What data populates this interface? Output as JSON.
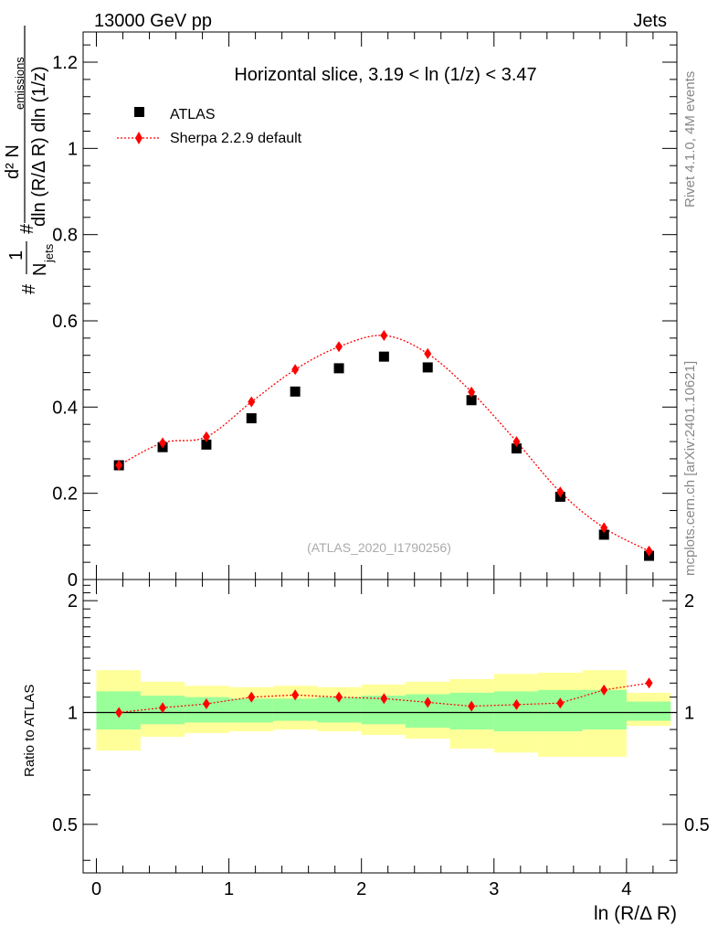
{
  "header": {
    "energy_label": "13000 GeV pp",
    "process_label": "Jets"
  },
  "side_labels": {
    "rivet": "Rivet 4.1.0,  4M events",
    "mcplots": "mcplots.cern.ch [arXiv:2401.10621]"
  },
  "chart_data": [
    {
      "type": "scatter",
      "title": "Horizontal slice, 3.19 < ln (1/z) < 3.47",
      "watermark": "(ATLAS_2020_I1790256)",
      "xlabel": "ln (R/Δ R)",
      "ylabel_parts": {
        "prefix": "#",
        "frac1_num": "1",
        "frac1_den": "N",
        "frac1_den_sub": "jets",
        "hash2": "#",
        "frac2_num": "d² N",
        "frac2_num_sub": "emissions",
        "frac2_den": "dln (R/Δ R) dln (1/z)"
      },
      "xlim": [
        -0.1,
        4.38
      ],
      "ylim": [
        0,
        1.27
      ],
      "yticks": [
        0,
        0.2,
        0.4,
        0.6,
        0.8,
        1,
        1.2
      ],
      "ytick_labels": [
        "0",
        "0.2",
        "0.4",
        "0.6",
        "0.8",
        "1",
        "1.2"
      ],
      "x": [
        0.17,
        0.5,
        0.83,
        1.17,
        1.5,
        1.83,
        2.17,
        2.5,
        2.83,
        3.17,
        3.5,
        3.83,
        4.17
      ],
      "series": [
        {
          "name": "ATLAS",
          "marker": "square",
          "color": "#000000",
          "values": [
            0.265,
            0.307,
            0.313,
            0.374,
            0.436,
            0.49,
            0.517,
            0.492,
            0.416,
            0.304,
            0.192,
            0.104,
            0.055
          ]
        },
        {
          "name": "Sherpa 2.2.9 default",
          "marker": "diamond",
          "line": "dotted",
          "color": "#ff0000",
          "values": [
            0.265,
            0.317,
            0.331,
            0.412,
            0.487,
            0.54,
            0.566,
            0.524,
            0.435,
            0.32,
            0.203,
            0.12,
            0.066
          ]
        }
      ]
    },
    {
      "type": "band-ratio",
      "ylabel": "Ratio to ATLAS",
      "ylim": [
        0.37,
        2.28
      ],
      "yticks": [
        0.5,
        1,
        2
      ],
      "ytick_labels": [
        "0.5",
        "1",
        "2"
      ],
      "xticks": [
        0,
        1,
        2,
        3,
        4
      ],
      "xtick_labels": [
        "0",
        "1",
        "2",
        "3",
        "4"
      ],
      "bin_edges": [
        0,
        0.333,
        0.667,
        1,
        1.333,
        1.667,
        2,
        2.333,
        2.667,
        3,
        3.333,
        3.667,
        4,
        4.333
      ],
      "outer_band_color": "#ffff99",
      "inner_band_color": "#99ff99",
      "outer_band": {
        "low": [
          0.79,
          0.86,
          0.88,
          0.89,
          0.9,
          0.89,
          0.87,
          0.85,
          0.8,
          0.78,
          0.76,
          0.76,
          0.92
        ],
        "high": [
          1.3,
          1.21,
          1.18,
          1.17,
          1.18,
          1.17,
          1.19,
          1.21,
          1.23,
          1.27,
          1.28,
          1.3,
          1.13
        ]
      },
      "inner_band": {
        "low": [
          0.9,
          0.93,
          0.94,
          0.94,
          0.95,
          0.94,
          0.93,
          0.91,
          0.9,
          0.89,
          0.89,
          0.9,
          0.95
        ],
        "high": [
          1.14,
          1.11,
          1.1,
          1.09,
          1.09,
          1.1,
          1.11,
          1.12,
          1.13,
          1.14,
          1.15,
          1.15,
          1.07
        ]
      },
      "reference": 1,
      "x": [
        0.17,
        0.5,
        0.83,
        1.17,
        1.5,
        1.83,
        2.17,
        2.5,
        2.83,
        3.17,
        3.5,
        3.83,
        4.17
      ],
      "series": [
        {
          "name": "Sherpa 2.2.9 default",
          "color": "#ff0000",
          "values": [
            1.0,
            1.03,
            1.055,
            1.1,
            1.115,
            1.1,
            1.09,
            1.065,
            1.04,
            1.05,
            1.06,
            1.15,
            1.2
          ]
        }
      ]
    }
  ]
}
